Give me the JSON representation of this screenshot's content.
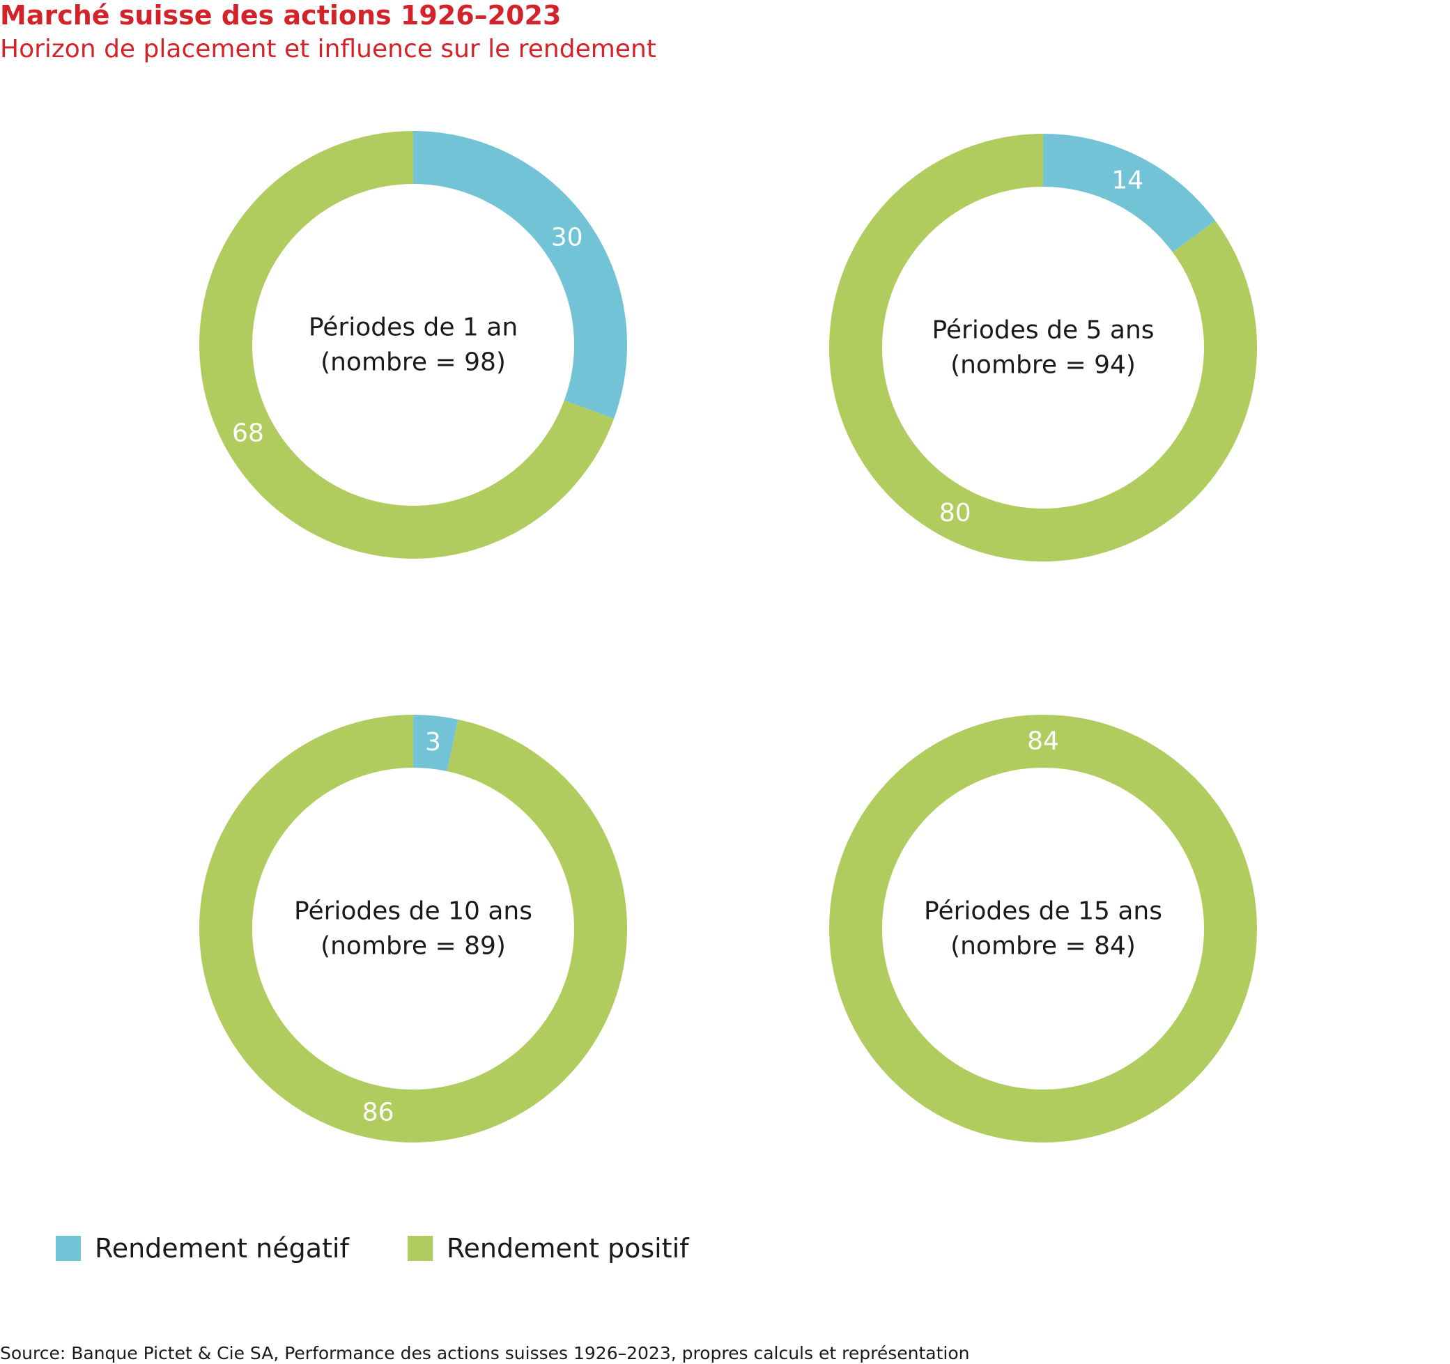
{
  "title": "Marché suisse des actions 1926–2023",
  "subtitle": "Horizon de placement et influence sur le rendement",
  "colors": {
    "negative": "#73c3d6",
    "positive": "#b0cc5f",
    "title": "#d2232a"
  },
  "legend": {
    "negative": "Rendement négatif",
    "positive": "Rendement positif"
  },
  "source": "Source: Banque Pictet & Cie SA, Performance des actions suisses 1926–2023, propres calculs et représentation",
  "chart_data": [
    {
      "type": "pie",
      "center_label": [
        "Périodes de 1 an",
        "(nombre = 98)"
      ],
      "slices": [
        {
          "name": "Rendement négatif",
          "value": 30
        },
        {
          "name": "Rendement positif",
          "value": 68
        }
      ]
    },
    {
      "type": "pie",
      "center_label": [
        "Périodes de 5 ans",
        "(nombre = 94)"
      ],
      "slices": [
        {
          "name": "Rendement négatif",
          "value": 14
        },
        {
          "name": "Rendement positif",
          "value": 80
        }
      ]
    },
    {
      "type": "pie",
      "center_label": [
        "Périodes de 10 ans",
        "(nombre = 89)"
      ],
      "slices": [
        {
          "name": "Rendement négatif",
          "value": 3
        },
        {
          "name": "Rendement positif",
          "value": 86
        }
      ]
    },
    {
      "type": "pie",
      "center_label": [
        "Périodes de 15 ans",
        "(nombre = 84)"
      ],
      "slices": [
        {
          "name": "Rendement positif",
          "value": 84
        }
      ]
    }
  ]
}
